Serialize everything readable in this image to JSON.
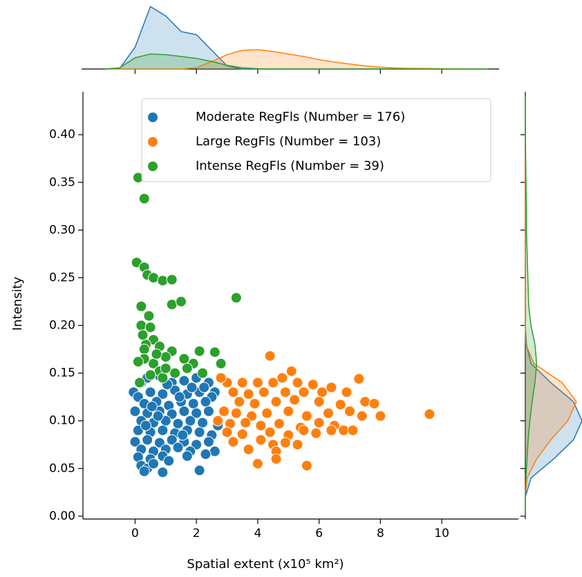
{
  "chart_data": [
    {
      "type": "scatter",
      "xlabel": "Spatial extent (x10⁵ km²)",
      "ylabel": "Intensity",
      "xlim": [
        -1.7,
        12.5
      ],
      "ylim": [
        -0.003,
        0.445
      ],
      "xticks": [
        0,
        2,
        4,
        6,
        8,
        10
      ],
      "yticks": [
        {
          "value": 0,
          "label": "0.00"
        },
        {
          "value": 0.05,
          "label": "0.05"
        },
        {
          "value": 0.1,
          "label": "0.10"
        },
        {
          "value": 0.15,
          "label": "0.15"
        },
        {
          "value": 0.2,
          "label": "0.20"
        },
        {
          "value": 0.25,
          "label": "0.25"
        },
        {
          "value": 0.3,
          "label": "0.30"
        },
        {
          "value": 0.35,
          "label": "0.35"
        },
        {
          "value": 0.4,
          "label": "0.40"
        }
      ],
      "legend": "upper right",
      "series": [
        {
          "name": "Moderate RegFls (Number = 176)",
          "color": "#1f77b4",
          "x": [
            -0.05,
            0.2,
            0.4,
            0.8,
            1.2,
            1.6,
            2.0,
            2.4,
            2.6,
            0.1,
            0.5,
            0.9,
            1.3,
            1.7,
            2.1,
            2.5,
            0.3,
            0.7,
            1.1,
            1.5,
            1.9,
            2.3,
            0.0,
            0.4,
            0.8,
            1.2,
            1.6,
            2.0,
            2.4,
            0.2,
            0.6,
            1.0,
            1.4,
            1.8,
            2.2,
            2.7,
            0.1,
            0.5,
            0.9,
            1.3,
            1.7,
            2.1,
            2.5,
            0.0,
            0.4,
            0.8,
            1.2,
            1.6,
            2.0,
            2.4,
            0.2,
            0.6,
            1.0,
            1.4,
            1.8,
            2.6,
            0.1,
            0.5,
            0.9,
            1.7,
            2.3,
            0.2,
            0.4,
            0.3,
            0.9,
            2.1,
            0.6,
            1.1,
            0.35,
            0.75,
            1.45,
            1.85,
            1.05,
            0.55,
            2.25,
            1.55
          ],
          "values": [
            0.13,
            0.14,
            0.145,
            0.147,
            0.14,
            0.142,
            0.145,
            0.14,
            0.13,
            0.125,
            0.13,
            0.128,
            0.132,
            0.128,
            0.13,
            0.125,
            0.118,
            0.12,
            0.116,
            0.12,
            0.118,
            0.12,
            0.11,
            0.108,
            0.11,
            0.107,
            0.11,
            0.108,
            0.11,
            0.1,
            0.098,
            0.1,
            0.097,
            0.1,
            0.098,
            0.095,
            0.09,
            0.088,
            0.09,
            0.087,
            0.09,
            0.088,
            0.085,
            0.078,
            0.08,
            0.077,
            0.08,
            0.078,
            0.075,
            0.078,
            0.07,
            0.068,
            0.07,
            0.072,
            0.068,
            0.068,
            0.062,
            0.06,
            0.063,
            0.063,
            0.065,
            0.053,
            0.05,
            0.047,
            0.046,
            0.048,
            0.055,
            0.058,
            0.095,
            0.105,
            0.125,
            0.135,
            0.138,
            0.115,
            0.135,
            0.085
          ]
        },
        {
          "name": "Large RegFls (Number = 103)",
          "color": "#ff7f0e",
          "x": [
            4.4,
            5.1,
            4.8,
            3.0,
            3.5,
            4.0,
            4.5,
            5.3,
            5.8,
            6.4,
            7.3,
            2.8,
            3.2,
            3.7,
            4.2,
            4.9,
            5.5,
            6.1,
            6.9,
            7.5,
            3.4,
            3.9,
            4.6,
            5.2,
            6.0,
            6.7,
            7.8,
            8.0,
            9.6,
            2.9,
            3.3,
            3.8,
            4.3,
            5.0,
            5.6,
            6.3,
            7.0,
            7.4,
            2.7,
            3.1,
            3.6,
            4.1,
            4.7,
            5.4,
            6.5,
            6.8,
            3.0,
            3.5,
            4.4,
            5.0,
            5.9,
            6.4,
            7.1,
            3.2,
            4.1,
            4.5,
            4.9,
            5.3,
            3.7,
            4.6,
            4.6,
            4.0,
            5.6,
            5.5,
            6.0
          ],
          "values": [
            0.168,
            0.152,
            0.145,
            0.14,
            0.14,
            0.14,
            0.14,
            0.14,
            0.138,
            0.135,
            0.144,
            0.145,
            0.13,
            0.128,
            0.13,
            0.13,
            0.13,
            0.13,
            0.13,
            0.12,
            0.12,
            0.118,
            0.12,
            0.122,
            0.12,
            0.117,
            0.118,
            0.105,
            0.107,
            0.11,
            0.108,
            0.105,
            0.108,
            0.11,
            0.105,
            0.108,
            0.11,
            0.105,
            0.1,
            0.097,
            0.098,
            0.095,
            0.097,
            0.093,
            0.095,
            0.09,
            0.088,
            0.086,
            0.088,
            0.085,
            0.087,
            0.09,
            0.09,
            0.078,
            0.08,
            0.075,
            0.077,
            0.075,
            0.07,
            0.068,
            0.06,
            0.055,
            0.053,
            0.09,
            0.098
          ]
        },
        {
          "name": "Intense RegFls (Number = 39)",
          "color": "#2ca02c",
          "x": [
            0.1,
            0.3,
            0.05,
            0.3,
            0.4,
            0.6,
            0.9,
            1.2,
            1.2,
            1.5,
            3.3,
            0.2,
            0.2,
            0.5,
            0.6,
            0.35,
            0.8,
            0.3,
            1.2,
            1.0,
            0.3,
            0.1,
            0.6,
            2.1,
            2.6,
            2.8,
            0.8,
            1.6,
            1.3,
            2.2,
            0.9,
            0.5,
            1.0,
            0.7,
            0.25,
            1.9,
            0.15,
            0.45,
            1.7
          ],
          "values": [
            0.355,
            0.333,
            0.266,
            0.261,
            0.253,
            0.25,
            0.247,
            0.248,
            0.222,
            0.225,
            0.229,
            0.22,
            0.2,
            0.198,
            0.185,
            0.18,
            0.178,
            0.175,
            0.173,
            0.167,
            0.165,
            0.162,
            0.16,
            0.173,
            0.172,
            0.16,
            0.152,
            0.165,
            0.15,
            0.15,
            0.145,
            0.148,
            0.155,
            0.17,
            0.19,
            0.16,
            0.14,
            0.21,
            0.155
          ]
        }
      ]
    },
    {
      "type": "area",
      "x": [
        -1,
        -0.5,
        0,
        0.5,
        1,
        1.5,
        2,
        2.5,
        3,
        3.5,
        4,
        4.5,
        5,
        5.5,
        6,
        6.5,
        7,
        7.5,
        8,
        8.5,
        9,
        9.5,
        10,
        10.5,
        11,
        11.5
      ],
      "ylim": [
        0,
        1.05
      ],
      "series": [
        {
          "color": "#1f77b4",
          "values": [
            0,
            0.01,
            0.35,
            1.0,
            0.85,
            0.6,
            0.55,
            0.3,
            0.05,
            0,
            0,
            0,
            0,
            0,
            0,
            0,
            0,
            0,
            0,
            0,
            0,
            0,
            0,
            0,
            0,
            0
          ]
        },
        {
          "color": "#ff7f0e",
          "values": [
            0,
            0,
            0,
            0,
            0,
            0,
            0.02,
            0.12,
            0.23,
            0.3,
            0.31,
            0.28,
            0.24,
            0.2,
            0.15,
            0.11,
            0.08,
            0.05,
            0.03,
            0.015,
            0.01,
            0.008,
            0.005,
            0.002,
            0,
            0
          ]
        },
        {
          "color": "#2ca02c",
          "values": [
            0,
            0.02,
            0.18,
            0.24,
            0.23,
            0.2,
            0.17,
            0.12,
            0.06,
            0.02,
            0.005,
            0,
            0,
            0,
            0,
            0,
            0,
            0,
            0,
            0,
            0,
            0,
            0,
            0,
            0,
            0
          ]
        }
      ]
    },
    {
      "type": "area",
      "orientation": "horizontal",
      "y": [
        0,
        0.02,
        0.04,
        0.06,
        0.08,
        0.1,
        0.12,
        0.14,
        0.16,
        0.18,
        0.2,
        0.22,
        0.24,
        0.26,
        0.28,
        0.3,
        0.32,
        0.34,
        0.36,
        0.38,
        0.4,
        0.42,
        0.44
      ],
      "xlim": [
        0,
        1.0
      ],
      "series": [
        {
          "color": "#1f77b4",
          "values": [
            0,
            0,
            0.1,
            0.5,
            0.85,
            1.0,
            0.85,
            0.45,
            0.1,
            0.02,
            0,
            0,
            0,
            0,
            0,
            0,
            0,
            0,
            0,
            0,
            0,
            0,
            0
          ]
        },
        {
          "color": "#ff7f0e",
          "values": [
            0,
            0,
            0.03,
            0.2,
            0.45,
            0.75,
            0.9,
            0.65,
            0.15,
            0.01,
            0,
            0,
            0,
            0,
            0,
            0,
            0,
            0,
            0,
            0,
            0,
            0,
            0
          ]
        },
        {
          "color": "#2ca02c",
          "values": [
            0,
            0,
            0.01,
            0.03,
            0.05,
            0.08,
            0.12,
            0.17,
            0.2,
            0.17,
            0.1,
            0.06,
            0.05,
            0.04,
            0.03,
            0.02,
            0.02,
            0.015,
            0.01,
            0.005,
            0.002,
            0,
            0
          ]
        }
      ]
    }
  ]
}
